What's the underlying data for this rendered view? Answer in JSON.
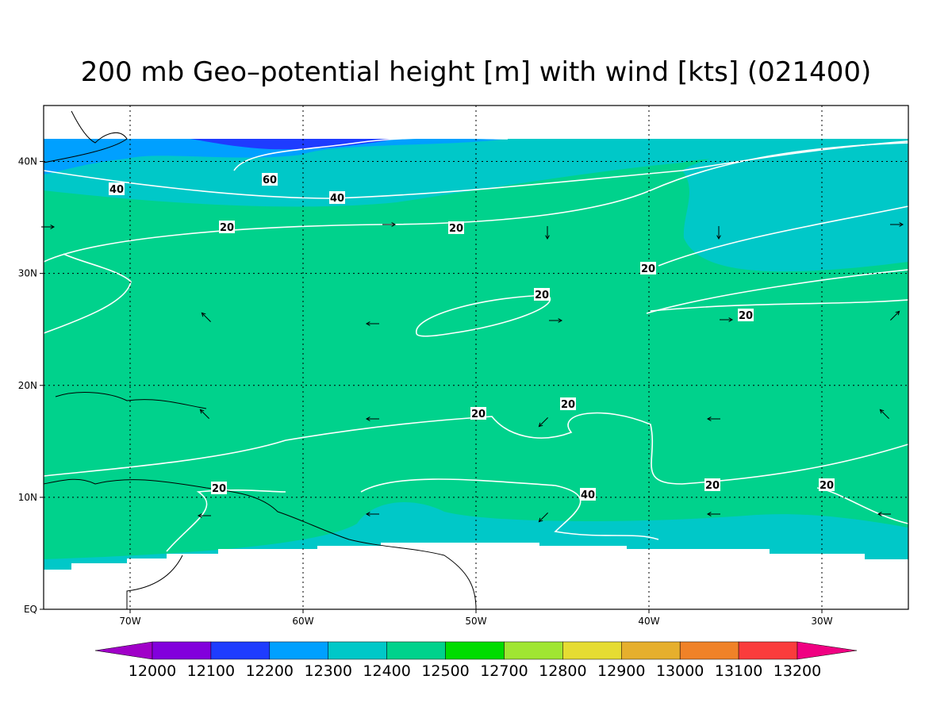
{
  "map_data": {
    "title": "200 mb Geo–potential height [m] with wind [kts] (021400)",
    "lonlim": [
      -75,
      -25
    ],
    "latlim": [
      0,
      45
    ],
    "lon_ticks": [
      {
        "value": -70,
        "label": "70W"
      },
      {
        "value": -60,
        "label": "60W"
      },
      {
        "value": -50,
        "label": "50W"
      },
      {
        "value": -40,
        "label": "40W"
      },
      {
        "value": -30,
        "label": "30W"
      }
    ],
    "lat_ticks": [
      {
        "value": 0,
        "label": "EQ"
      },
      {
        "value": 10,
        "label": "10N"
      },
      {
        "value": 20,
        "label": "20N"
      },
      {
        "value": 30,
        "label": "30N"
      },
      {
        "value": 40,
        "label": "40N"
      }
    ],
    "grid": true,
    "contour_labels": [
      40,
      60,
      40,
      20,
      20,
      20,
      20,
      20,
      20,
      20,
      20,
      40,
      20,
      20
    ],
    "colorbar": {
      "levels": [
        12000,
        12100,
        12200,
        12300,
        12400,
        12500,
        12700,
        12800,
        12900,
        13000,
        13100,
        13200
      ],
      "colors": [
        "#a000c8",
        "#8200dc",
        "#1e3cff",
        "#00a0ff",
        "#00c8c8",
        "#00d28c",
        "#00dc00",
        "#a0e632",
        "#e6dc32",
        "#e6af2d",
        "#f08228",
        "#fa3c3c",
        "#f00082"
      ]
    }
  }
}
